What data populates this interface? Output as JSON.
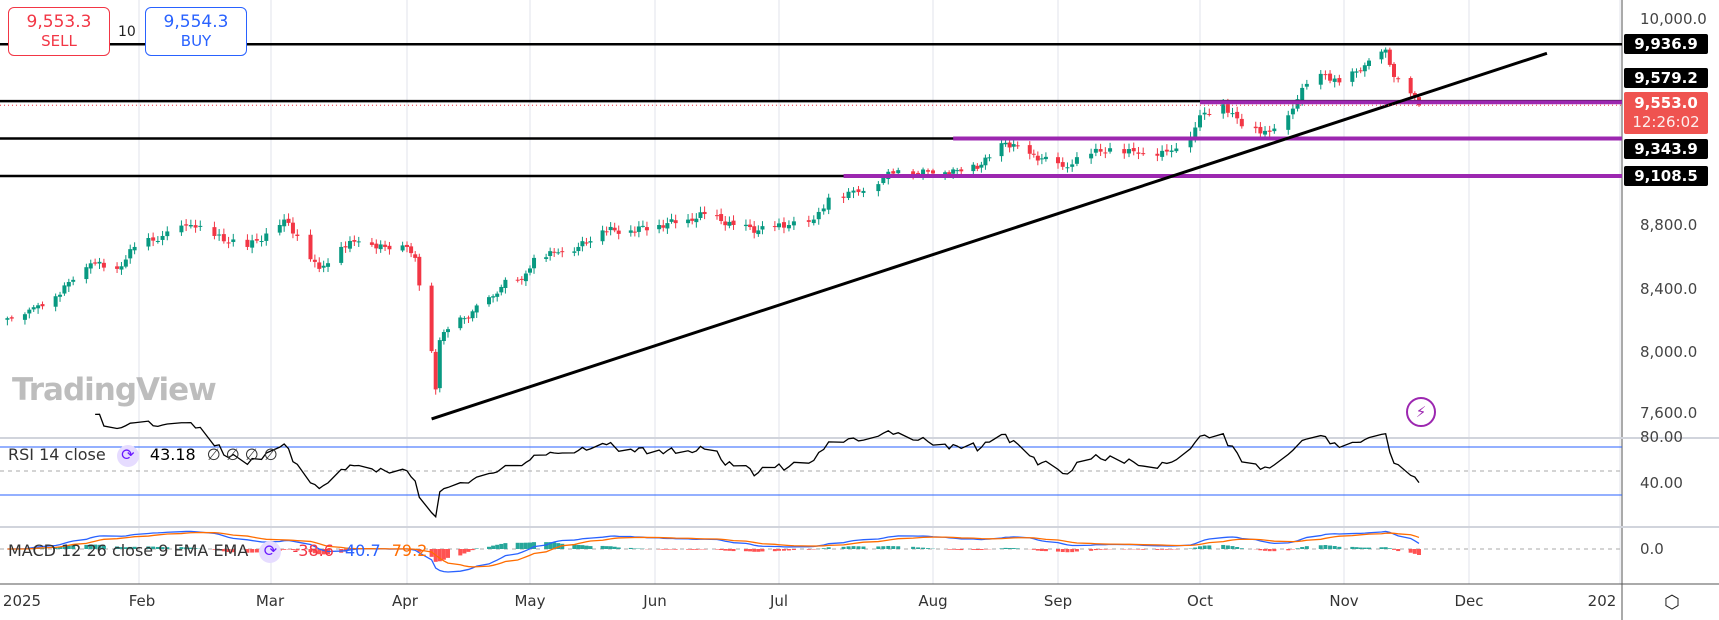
{
  "trade_widget": {
    "sell_price": "9,553.3",
    "sell_label": "SELL",
    "quantity": "10",
    "buy_price": "9,554.3",
    "buy_label": "BUY",
    "sell_color": "#f23645",
    "buy_color": "#2962ff"
  },
  "price_axis": {
    "ticks": [
      "10,000.0",
      "8,800.0",
      "8,400.0",
      "8,000.0",
      "7,600.0"
    ],
    "level_labels": [
      "9,936.9",
      "9,579.2",
      "9,343.9",
      "9,108.5"
    ],
    "current_price": "9,553.0",
    "countdown": "12:26:02"
  },
  "rsi": {
    "legend": "RSI 14 close",
    "value": "43.18",
    "extras": "∅ ∅ ∅ ∅",
    "ticks": [
      "80.00",
      "40.00"
    ],
    "upper_band": 70,
    "lower_band": 30
  },
  "macd": {
    "legend": "MACD 12 26 close 9 EMA EMA",
    "histogram": "-38.6",
    "macd": "40.7",
    "signal": "79.2",
    "ticks": [
      "0.0"
    ]
  },
  "time_axis": [
    "2025",
    "Feb",
    "Mar",
    "Apr",
    "May",
    "Jun",
    "Jul",
    "Aug",
    "Sep",
    "Oct",
    "Nov",
    "Dec",
    "202"
  ],
  "watermark": "TradingView",
  "colors": {
    "up": "#089981",
    "down": "#f23645",
    "level": "#000000",
    "zone": "#9c27b0",
    "macd": "#2962ff",
    "signal": "#ff6d00",
    "rsi_band": "#2962ff"
  },
  "chart_data": {
    "type": "candlestick",
    "ylim": [
      7500,
      10050
    ],
    "closes": [
      [
        "2025-01-02",
        8214
      ],
      [
        "2025-01-08",
        8283
      ],
      [
        "2025-01-13",
        8352
      ],
      [
        "2025-01-17",
        8455
      ],
      [
        "2025-01-21",
        8559
      ],
      [
        "2025-01-27",
        8524
      ],
      [
        "2025-01-31",
        8662
      ],
      [
        "2025-02-06",
        8731
      ],
      [
        "2025-02-12",
        8800
      ],
      [
        "2025-02-17",
        8731
      ],
      [
        "2025-02-24",
        8662
      ],
      [
        "2025-03-03",
        8800
      ],
      [
        "2025-03-04",
        8834
      ],
      [
        "2025-03-07",
        8731
      ],
      [
        "2025-03-12",
        8524
      ],
      [
        "2025-03-17",
        8662
      ],
      [
        "2025-03-21",
        8697
      ],
      [
        "2025-03-27",
        8662
      ],
      [
        "2025-04-01",
        8662
      ],
      [
        "2025-04-03",
        8593
      ],
      [
        "2025-04-04",
        8420
      ],
      [
        "2025-04-07",
        8007
      ],
      [
        "2025-04-08",
        7766
      ],
      [
        "2025-04-09",
        8076
      ],
      [
        "2025-04-11",
        8145
      ],
      [
        "2025-04-15",
        8214
      ],
      [
        "2025-04-22",
        8352
      ],
      [
        "2025-04-25",
        8455
      ],
      [
        "2025-04-29",
        8455
      ],
      [
        "2025-05-02",
        8593
      ],
      [
        "2025-05-08",
        8628
      ],
      [
        "2025-05-13",
        8662
      ],
      [
        "2025-05-19",
        8766
      ],
      [
        "2025-05-26",
        8766
      ],
      [
        "2025-06-02",
        8800
      ],
      [
        "2025-06-09",
        8834
      ],
      [
        "2025-06-13",
        8869
      ],
      [
        "2025-06-20",
        8800
      ],
      [
        "2025-06-26",
        8766
      ],
      [
        "2025-07-03",
        8800
      ],
      [
        "2025-07-08",
        8834
      ],
      [
        "2025-07-11",
        8972
      ],
      [
        "2025-07-17",
        9007
      ],
      [
        "2025-07-22",
        9097
      ],
      [
        "2025-07-25",
        9145
      ],
      [
        "2025-08-01",
        9124
      ],
      [
        "2025-08-07",
        9145
      ],
      [
        "2025-08-13",
        9179
      ],
      [
        "2025-08-19",
        9317
      ],
      [
        "2025-08-25",
        9248
      ],
      [
        "2025-09-02",
        9166
      ],
      [
        "2025-09-08",
        9248
      ],
      [
        "2025-09-12",
        9283
      ],
      [
        "2025-09-18",
        9248
      ],
      [
        "2025-09-24",
        9262
      ],
      [
        "2025-09-29",
        9352
      ],
      [
        "2025-10-01",
        9490
      ],
      [
        "2025-10-06",
        9559
      ],
      [
        "2025-10-10",
        9421
      ],
      [
        "2025-10-16",
        9386
      ],
      [
        "2025-10-20",
        9490
      ],
      [
        "2025-10-23",
        9662
      ],
      [
        "2025-10-28",
        9745
      ],
      [
        "2025-10-31",
        9697
      ],
      [
        "2025-11-04",
        9766
      ],
      [
        "2025-11-07",
        9834
      ],
      [
        "2025-11-11",
        9903
      ],
      [
        "2025-11-13",
        9731
      ],
      [
        "2025-11-17",
        9628
      ],
      [
        "2025-11-19",
        9553
      ]
    ],
    "horizontal_levels": [
      9936.9,
      9579.2,
      9343.9,
      9108.5
    ],
    "zones": [
      {
        "price": 9572,
        "start": "2025-10-01"
      },
      {
        "price": 9343.9,
        "start": "2025-08-06"
      },
      {
        "price": 9108.5,
        "start": "2025-07-14"
      }
    ],
    "trendline": {
      "start": {
        "date": "2025-04-07",
        "price": 7580
      },
      "end": {
        "date": "2025-12-17",
        "price": 9880
      }
    }
  }
}
